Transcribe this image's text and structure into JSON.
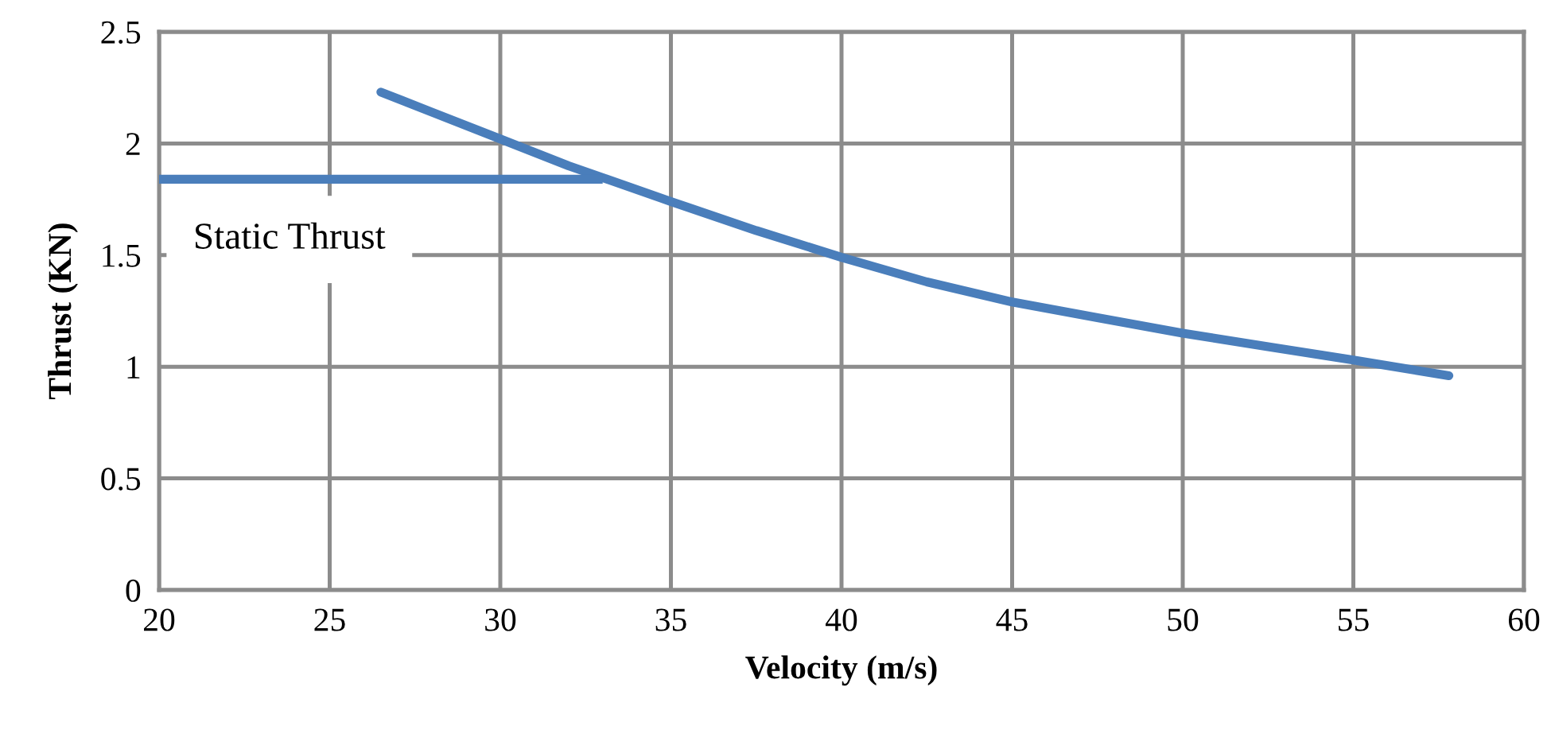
{
  "chart_data": {
    "type": "line",
    "xlabel": "Velocity (m/s)",
    "ylabel": "Thrust (KN)",
    "xlim": [
      20,
      60
    ],
    "xticks": [
      20,
      25,
      30,
      35,
      40,
      45,
      50,
      55,
      60
    ],
    "ylim": [
      0,
      2.5
    ],
    "yticks": [
      0,
      0.5,
      1,
      1.5,
      2,
      2.5
    ],
    "grid": true,
    "legend": false,
    "marker": "none",
    "line_style": "solid",
    "series": [
      {
        "color": "#4a7ebb",
        "x": [
          26.5,
          28,
          30,
          32,
          35,
          37.5,
          40,
          42.5,
          45,
          47.5,
          50,
          52.5,
          55,
          57.8
        ],
        "values": [
          2.23,
          2.14,
          2.02,
          1.9,
          1.74,
          1.61,
          1.49,
          1.38,
          1.29,
          1.22,
          1.15,
          1.09,
          1.03,
          0.96
        ]
      },
      {
        "name": "Static Thrust",
        "color": "#4a7ebb",
        "x": [
          20,
          33
        ],
        "values": [
          1.84,
          1.84
        ]
      }
    ]
  }
}
